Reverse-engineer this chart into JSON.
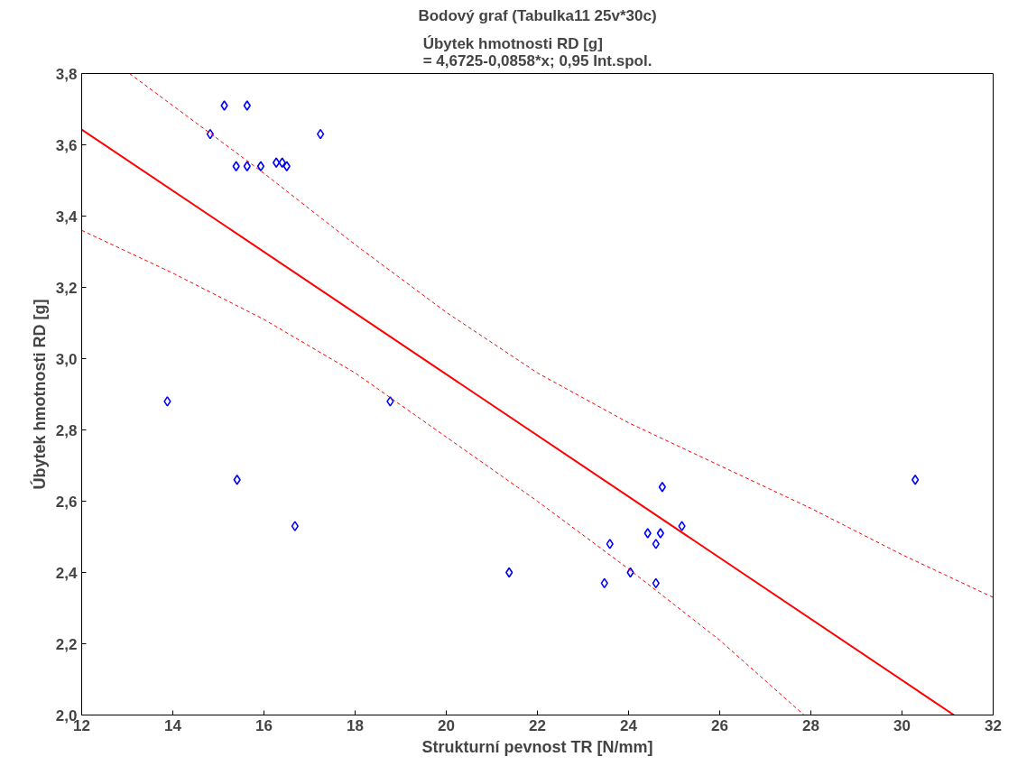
{
  "chart_data": {
    "type": "scatter",
    "title": "Bodový graf (Tabulka11 25v*30c)",
    "subtitle": "Úbytek hmotnosti RD [g]\n= 4,6725-0,0858*x; 0,95 Int.spol.",
    "xlabel": "Strukturní pevnost TR [N/mm]",
    "ylabel": "Úbytek hmotnosti RD [g]",
    "xlim": [
      12,
      32
    ],
    "ylim": [
      2.0,
      3.8
    ],
    "xticks": [
      12,
      14,
      16,
      18,
      20,
      22,
      24,
      26,
      28,
      30,
      32
    ],
    "yticks": [
      {
        "value": 2.0,
        "label": "2,0"
      },
      {
        "value": 2.2,
        "label": "2,2"
      },
      {
        "value": 2.4,
        "label": "2,4"
      },
      {
        "value": 2.6,
        "label": "2,6"
      },
      {
        "value": 2.8,
        "label": "2,8"
      },
      {
        "value": 3.0,
        "label": "3,0"
      },
      {
        "value": 3.2,
        "label": "3,2"
      },
      {
        "value": 3.4,
        "label": "3,4"
      },
      {
        "value": 3.6,
        "label": "3,6"
      },
      {
        "value": 3.8,
        "label": "3,8"
      }
    ],
    "grid": false,
    "series": [
      {
        "marker": "diamond",
        "color": "#0000ff",
        "x": [
          13.88,
          14.82,
          15.13,
          15.63,
          15.39,
          15.63,
          15.93,
          16.27,
          16.4,
          16.5,
          17.24,
          15.41,
          16.68,
          18.77,
          21.38,
          23.47,
          23.59,
          24.04,
          24.42,
          24.6,
          24.6,
          24.7,
          24.74,
          25.17,
          30.29
        ],
        "values": [
          2.88,
          3.63,
          3.71,
          3.71,
          3.54,
          3.54,
          3.54,
          3.55,
          3.55,
          3.54,
          3.63,
          2.66,
          2.53,
          2.88,
          2.4,
          2.37,
          2.48,
          2.4,
          2.51,
          2.37,
          2.48,
          2.51,
          2.64,
          2.53,
          2.66
        ]
      },
      {
        "type": "line",
        "line_style": "solid",
        "color": "#ff0000",
        "x": [
          12,
          31.14
        ],
        "values": [
          3.643,
          2.0
        ]
      },
      {
        "type": "line",
        "line_style": "dashed",
        "color": "#ff0000",
        "x": [
          13.05,
          14,
          16,
          18,
          20,
          22,
          24,
          26,
          28,
          30,
          32
        ],
        "values": [
          3.8,
          3.71,
          3.52,
          3.32,
          3.13,
          2.96,
          2.82,
          2.7,
          2.58,
          2.45,
          2.33
        ]
      },
      {
        "type": "line",
        "line_style": "dashed",
        "color": "#ff0000",
        "x": [
          12,
          14,
          16,
          18,
          20,
          22,
          24,
          26,
          27.85
        ],
        "values": [
          3.36,
          3.24,
          3.11,
          2.96,
          2.78,
          2.6,
          2.41,
          2.21,
          2.0
        ]
      }
    ]
  }
}
